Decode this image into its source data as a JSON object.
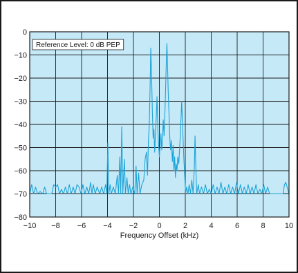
{
  "chart_data": {
    "type": "line",
    "xlabel": "Frequency Offset (kHz)",
    "ylabel": "",
    "annotation": "Reference Level: 0 dB PEP",
    "xlim": [
      -10,
      10
    ],
    "ylim": [
      -80,
      0
    ],
    "xticks": [
      -10,
      -8,
      -6,
      -4,
      -2,
      0,
      2,
      4,
      6,
      8,
      10
    ],
    "xtick_labels": [
      "−10",
      "−8",
      "−6",
      "−4",
      "−2",
      "0",
      "2",
      "4",
      "6",
      "8",
      "10"
    ],
    "yticks": [
      0,
      -10,
      -20,
      -30,
      -40,
      -50,
      -60,
      -70,
      -80
    ],
    "ytick_labels": [
      "0",
      "−10",
      "−20",
      "−30",
      "−40",
      "−50",
      "−60",
      "−70",
      "−80"
    ],
    "grid": true,
    "colors": {
      "plot_bg": "#c6e9f8",
      "line": "#1ba3d6",
      "grid": "#1a1a1a"
    },
    "series": [
      {
        "values": [
          [
            -10.0,
            -70
          ],
          [
            -9.85,
            -66
          ],
          [
            -9.7,
            -70
          ],
          [
            -9.55,
            -67
          ],
          [
            -9.4,
            -70
          ],
          [
            -9.2,
            -69
          ],
          [
            -9.0,
            -70
          ],
          [
            -8.85,
            -67
          ],
          [
            -8.7,
            -70
          ],
          [
            -8.5,
            -70
          ],
          [
            -8.3,
            -70
          ],
          [
            -8.15,
            -66
          ],
          [
            -8.0,
            -67
          ],
          [
            -7.85,
            -66
          ],
          [
            -7.7,
            -70
          ],
          [
            -7.55,
            -68
          ],
          [
            -7.4,
            -70
          ],
          [
            -7.25,
            -67
          ],
          [
            -7.1,
            -70
          ],
          [
            -6.95,
            -66
          ],
          [
            -6.8,
            -70
          ],
          [
            -6.65,
            -67
          ],
          [
            -6.5,
            -70
          ],
          [
            -6.35,
            -66
          ],
          [
            -6.2,
            -67
          ],
          [
            -6.05,
            -70
          ],
          [
            -5.9,
            -66
          ],
          [
            -5.75,
            -70
          ],
          [
            -5.6,
            -67
          ],
          [
            -5.45,
            -70
          ],
          [
            -5.3,
            -65
          ],
          [
            -5.2,
            -70
          ],
          [
            -5.1,
            -66
          ],
          [
            -4.95,
            -70
          ],
          [
            -4.8,
            -67
          ],
          [
            -4.6,
            -70
          ],
          [
            -4.45,
            -67
          ],
          [
            -4.3,
            -70
          ],
          [
            -4.15,
            -66
          ],
          [
            -4.05,
            -70
          ],
          [
            -3.98,
            -48
          ],
          [
            -3.9,
            -70
          ],
          [
            -3.8,
            -66
          ],
          [
            -3.7,
            -70
          ],
          [
            -3.55,
            -67
          ],
          [
            -3.4,
            -70
          ],
          [
            -3.25,
            -62
          ],
          [
            -3.15,
            -70
          ],
          [
            -3.05,
            -54
          ],
          [
            -2.98,
            -70
          ],
          [
            -2.9,
            -41
          ],
          [
            -2.82,
            -70
          ],
          [
            -2.7,
            -55
          ],
          [
            -2.62,
            -70
          ],
          [
            -2.5,
            -63
          ],
          [
            -2.4,
            -70
          ],
          [
            -2.3,
            -66
          ],
          [
            -2.2,
            -70
          ],
          [
            -2.05,
            -67
          ],
          [
            -1.9,
            -70
          ],
          [
            -1.8,
            -58
          ],
          [
            -1.72,
            -70
          ],
          [
            -1.6,
            -61
          ],
          [
            -1.5,
            -70
          ],
          [
            -1.35,
            -66
          ],
          [
            -1.2,
            -64
          ],
          [
            -1.1,
            -55
          ],
          [
            -1.0,
            -52
          ],
          [
            -0.92,
            -62
          ],
          [
            -0.85,
            -48
          ],
          [
            -0.78,
            -40
          ],
          [
            -0.72,
            -25
          ],
          [
            -0.66,
            -7
          ],
          [
            -0.6,
            -20
          ],
          [
            -0.54,
            -35
          ],
          [
            -0.48,
            -46
          ],
          [
            -0.42,
            -42
          ],
          [
            -0.36,
            -52
          ],
          [
            -0.3,
            -43
          ],
          [
            -0.24,
            -37
          ],
          [
            -0.18,
            -28
          ],
          [
            -0.12,
            -42
          ],
          [
            -0.06,
            -49
          ],
          [
            0.0,
            -54
          ],
          [
            0.06,
            -49
          ],
          [
            0.12,
            -44
          ],
          [
            0.18,
            -51
          ],
          [
            0.24,
            -47
          ],
          [
            0.3,
            -38
          ],
          [
            0.36,
            -45
          ],
          [
            0.42,
            -36
          ],
          [
            0.48,
            -25
          ],
          [
            0.54,
            -12
          ],
          [
            0.58,
            -5
          ],
          [
            0.62,
            -12
          ],
          [
            0.68,
            -26
          ],
          [
            0.74,
            -35
          ],
          [
            0.8,
            -45
          ],
          [
            0.86,
            -51
          ],
          [
            0.92,
            -47
          ],
          [
            1.0,
            -56
          ],
          [
            1.06,
            -49
          ],
          [
            1.12,
            -60
          ],
          [
            1.18,
            -54
          ],
          [
            1.24,
            -63
          ],
          [
            1.3,
            -57
          ],
          [
            1.36,
            -60
          ],
          [
            1.42,
            -54
          ],
          [
            1.5,
            -57
          ],
          [
            1.56,
            -50
          ],
          [
            1.62,
            -44
          ],
          [
            1.68,
            -36
          ],
          [
            1.72,
            -30
          ],
          [
            1.78,
            -39
          ],
          [
            1.84,
            -48
          ],
          [
            1.9,
            -56
          ],
          [
            1.96,
            -63
          ],
          [
            2.02,
            -70
          ],
          [
            2.1,
            -67
          ],
          [
            2.2,
            -70
          ],
          [
            2.3,
            -66
          ],
          [
            2.4,
            -70
          ],
          [
            2.5,
            -64
          ],
          [
            2.6,
            -70
          ],
          [
            2.7,
            -58
          ],
          [
            2.75,
            -45
          ],
          [
            2.8,
            -56
          ],
          [
            2.88,
            -70
          ],
          [
            3.0,
            -66
          ],
          [
            3.1,
            -70
          ],
          [
            3.25,
            -67
          ],
          [
            3.4,
            -70
          ],
          [
            3.55,
            -66
          ],
          [
            3.7,
            -70
          ],
          [
            3.85,
            -68
          ],
          [
            4.0,
            -70
          ],
          [
            4.15,
            -66
          ],
          [
            4.3,
            -70
          ],
          [
            4.45,
            -67
          ],
          [
            4.6,
            -70
          ],
          [
            4.75,
            -65
          ],
          [
            4.9,
            -70
          ],
          [
            5.05,
            -67
          ],
          [
            5.2,
            -70
          ],
          [
            5.35,
            -66
          ],
          [
            5.5,
            -70
          ],
          [
            5.65,
            -67
          ],
          [
            5.8,
            -70
          ],
          [
            5.95,
            -65
          ],
          [
            6.1,
            -70
          ],
          [
            6.25,
            -66
          ],
          [
            6.4,
            -70
          ],
          [
            6.55,
            -67
          ],
          [
            6.7,
            -70
          ],
          [
            6.85,
            -66
          ],
          [
            7.0,
            -70
          ],
          [
            7.15,
            -67
          ],
          [
            7.3,
            -70
          ],
          [
            7.45,
            -66
          ],
          [
            7.6,
            -70
          ],
          [
            7.75,
            -68
          ],
          [
            7.9,
            -70
          ],
          [
            8.05,
            -66
          ],
          [
            8.2,
            -70
          ],
          [
            8.35,
            -67
          ],
          [
            8.5,
            -70
          ],
          [
            8.65,
            -70
          ],
          [
            8.8,
            -70
          ],
          [
            8.95,
            -70
          ],
          [
            9.1,
            -70
          ],
          [
            9.25,
            -70
          ],
          [
            9.4,
            -70
          ],
          [
            9.55,
            -70
          ],
          [
            9.65,
            -66
          ],
          [
            9.75,
            -65
          ],
          [
            9.85,
            -67
          ],
          [
            10.0,
            -70
          ]
        ]
      }
    ]
  }
}
